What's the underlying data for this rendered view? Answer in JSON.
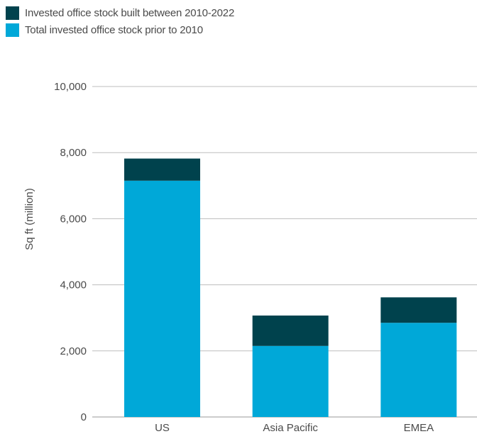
{
  "chart_data": {
    "type": "bar",
    "stacked": true,
    "categories": [
      "US",
      "Asia Pacific",
      "EMEA"
    ],
    "series": [
      {
        "name": "Total invested office stock prior to 2010",
        "color": "#00a8d8",
        "values": [
          7150,
          2150,
          2850
        ]
      },
      {
        "name": "Invested office stock built between 2010-2022",
        "color": "#00424d",
        "values": [
          670,
          920,
          770
        ]
      }
    ],
    "xlabel": "",
    "ylabel": "Sq ft (million)",
    "ylim": [
      0,
      10000
    ],
    "yticks": [
      0,
      2000,
      4000,
      6000,
      8000,
      10000
    ],
    "ytick_labels": [
      "0",
      "2,000",
      "4,000",
      "6,000",
      "8,000",
      "10,000"
    ],
    "grid": true,
    "legend_position": "top-left"
  }
}
